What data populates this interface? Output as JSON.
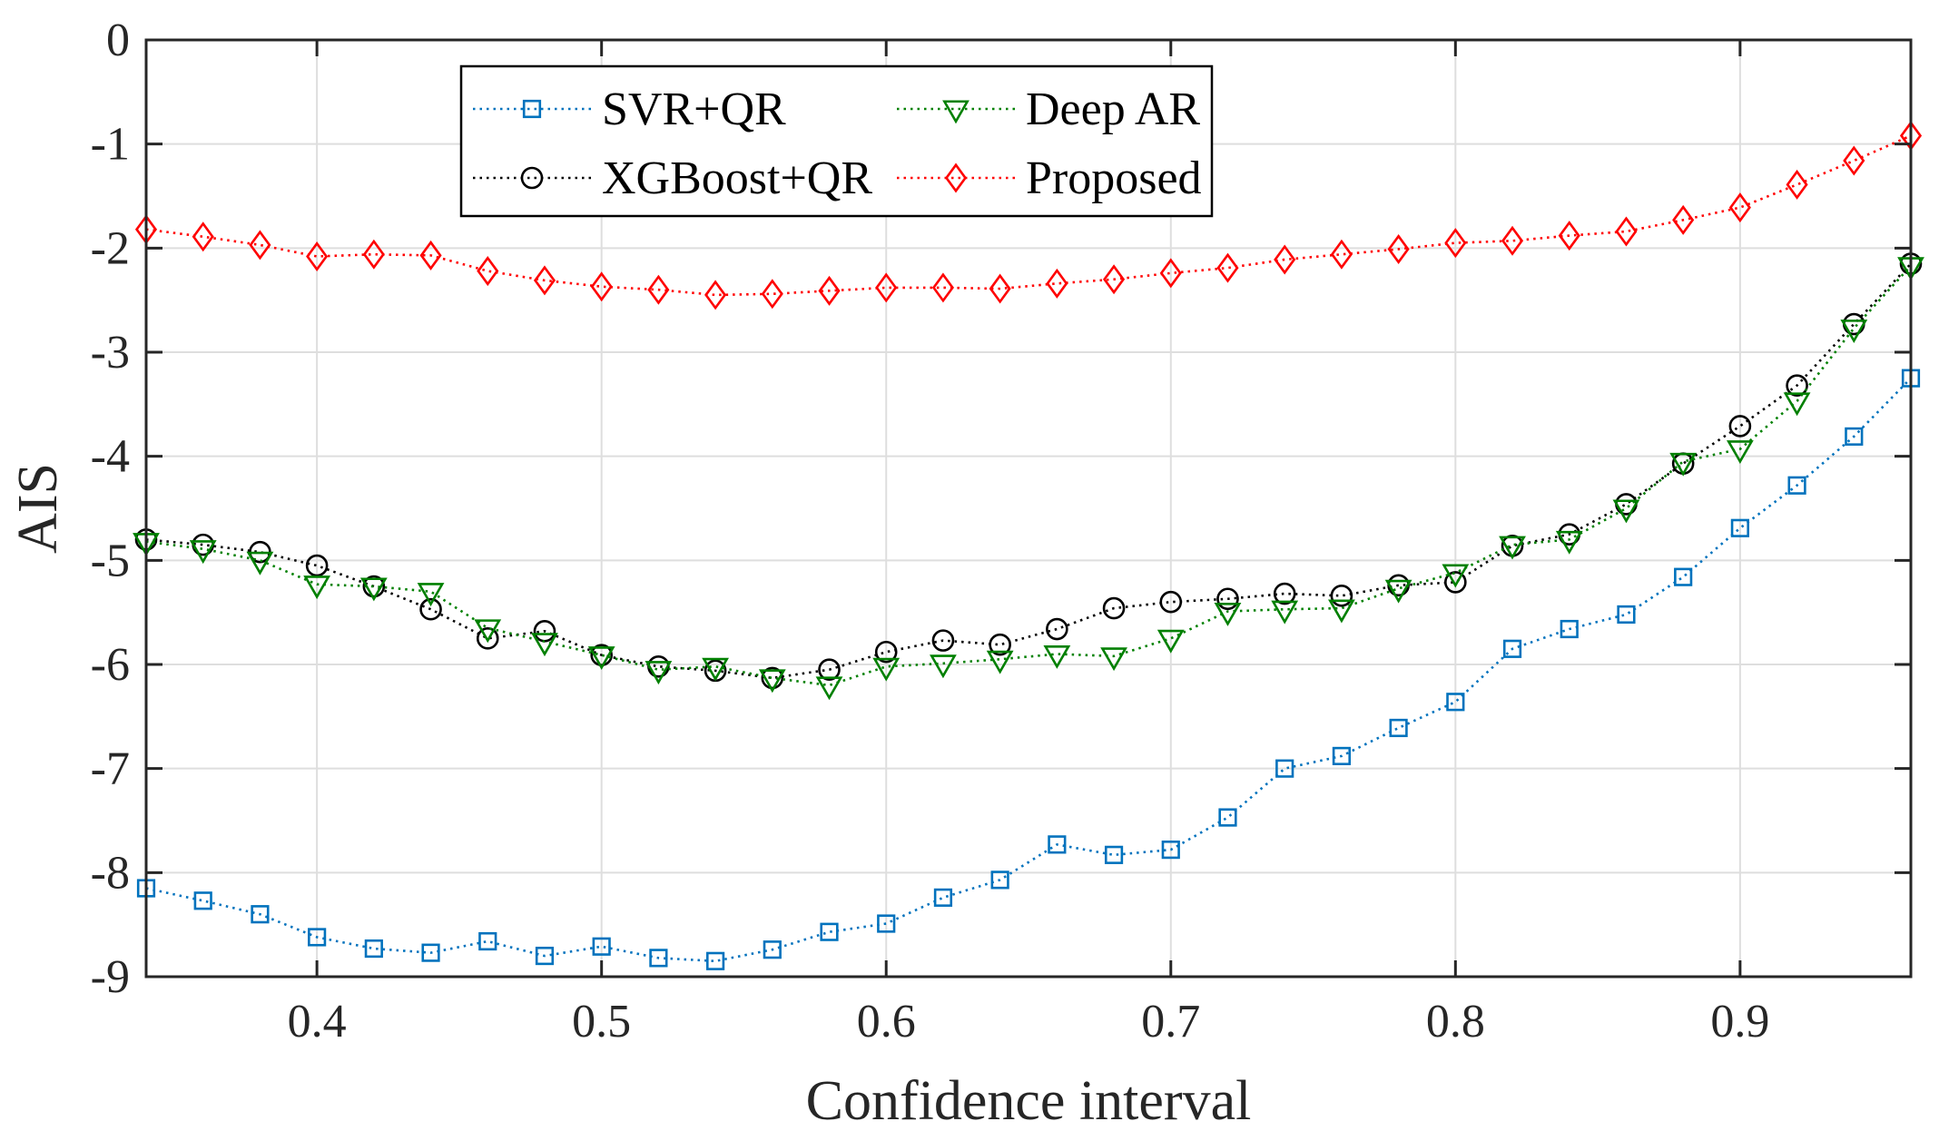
{
  "chart_data": {
    "type": "line",
    "title": "",
    "xlabel": "Confidence interval",
    "ylabel": "AIS",
    "xlim": [
      0.34,
      0.96
    ],
    "ylim": [
      -9,
      0
    ],
    "grid": true,
    "x_ticks": [
      0.4,
      0.5,
      0.6,
      0.7,
      0.8,
      0.9
    ],
    "x_tick_labels": [
      "0.4",
      "0.5",
      "0.6",
      "0.7",
      "0.8",
      "0.9"
    ],
    "y_ticks": [
      0,
      -1,
      -2,
      -3,
      -4,
      -5,
      -6,
      -7,
      -8,
      -9
    ],
    "y_tick_labels": [
      "0",
      "-1",
      "-2",
      "-3",
      "-4",
      "-5",
      "-6",
      "-7",
      "-8",
      "-9"
    ],
    "legend_position": "top-left",
    "x": [
      0.34,
      0.36,
      0.38,
      0.4,
      0.42,
      0.44,
      0.46,
      0.48,
      0.5,
      0.52,
      0.54,
      0.56,
      0.58,
      0.6,
      0.62,
      0.64,
      0.66,
      0.68,
      0.7,
      0.72,
      0.74,
      0.76,
      0.78,
      0.8,
      0.82,
      0.84,
      0.86,
      0.88,
      0.9,
      0.92,
      0.94,
      0.96
    ],
    "series": [
      {
        "name": "SVR+QR",
        "color": "#0072BD",
        "marker": "square",
        "values": [
          -8.15,
          -8.27,
          -8.4,
          -8.62,
          -8.73,
          -8.77,
          -8.66,
          -8.8,
          -8.71,
          -8.82,
          -8.85,
          -8.74,
          -8.57,
          -8.49,
          -8.24,
          -8.07,
          -7.73,
          -7.83,
          -7.78,
          -7.47,
          -7.0,
          -6.88,
          -6.61,
          -6.36,
          -5.85,
          -5.66,
          -5.52,
          -5.16,
          -4.69,
          -4.28,
          -3.81,
          -3.25
        ]
      },
      {
        "name": "XGBoost+QR",
        "color": "#000000",
        "marker": "circle",
        "values": [
          -4.8,
          -4.85,
          -4.92,
          -5.05,
          -5.25,
          -5.47,
          -5.75,
          -5.68,
          -5.91,
          -6.02,
          -6.06,
          -6.13,
          -6.05,
          -5.88,
          -5.77,
          -5.81,
          -5.66,
          -5.46,
          -5.4,
          -5.37,
          -5.32,
          -5.34,
          -5.24,
          -5.21,
          -4.86,
          -4.75,
          -4.46,
          -4.07,
          -3.71,
          -3.32,
          -2.73,
          -2.15
        ]
      },
      {
        "name": "Deep AR",
        "color": "#008000",
        "marker": "triangle-down",
        "values": [
          -4.82,
          -4.89,
          -5.0,
          -5.23,
          -5.25,
          -5.3,
          -5.65,
          -5.78,
          -5.91,
          -6.05,
          -6.02,
          -6.13,
          -6.2,
          -6.02,
          -5.99,
          -5.95,
          -5.9,
          -5.92,
          -5.75,
          -5.49,
          -5.47,
          -5.46,
          -5.27,
          -5.12,
          -4.85,
          -4.8,
          -4.5,
          -4.05,
          -3.93,
          -3.47,
          -2.77,
          -2.17
        ]
      },
      {
        "name": "Proposed",
        "color": "#FF0000",
        "marker": "diamond",
        "values": [
          -1.82,
          -1.89,
          -1.97,
          -2.08,
          -2.06,
          -2.07,
          -2.22,
          -2.31,
          -2.37,
          -2.4,
          -2.45,
          -2.44,
          -2.41,
          -2.38,
          -2.38,
          -2.39,
          -2.34,
          -2.3,
          -2.24,
          -2.19,
          -2.11,
          -2.06,
          -2.01,
          -1.95,
          -1.93,
          -1.88,
          -1.84,
          -1.73,
          -1.61,
          -1.39,
          -1.16,
          -0.92
        ]
      }
    ]
  }
}
